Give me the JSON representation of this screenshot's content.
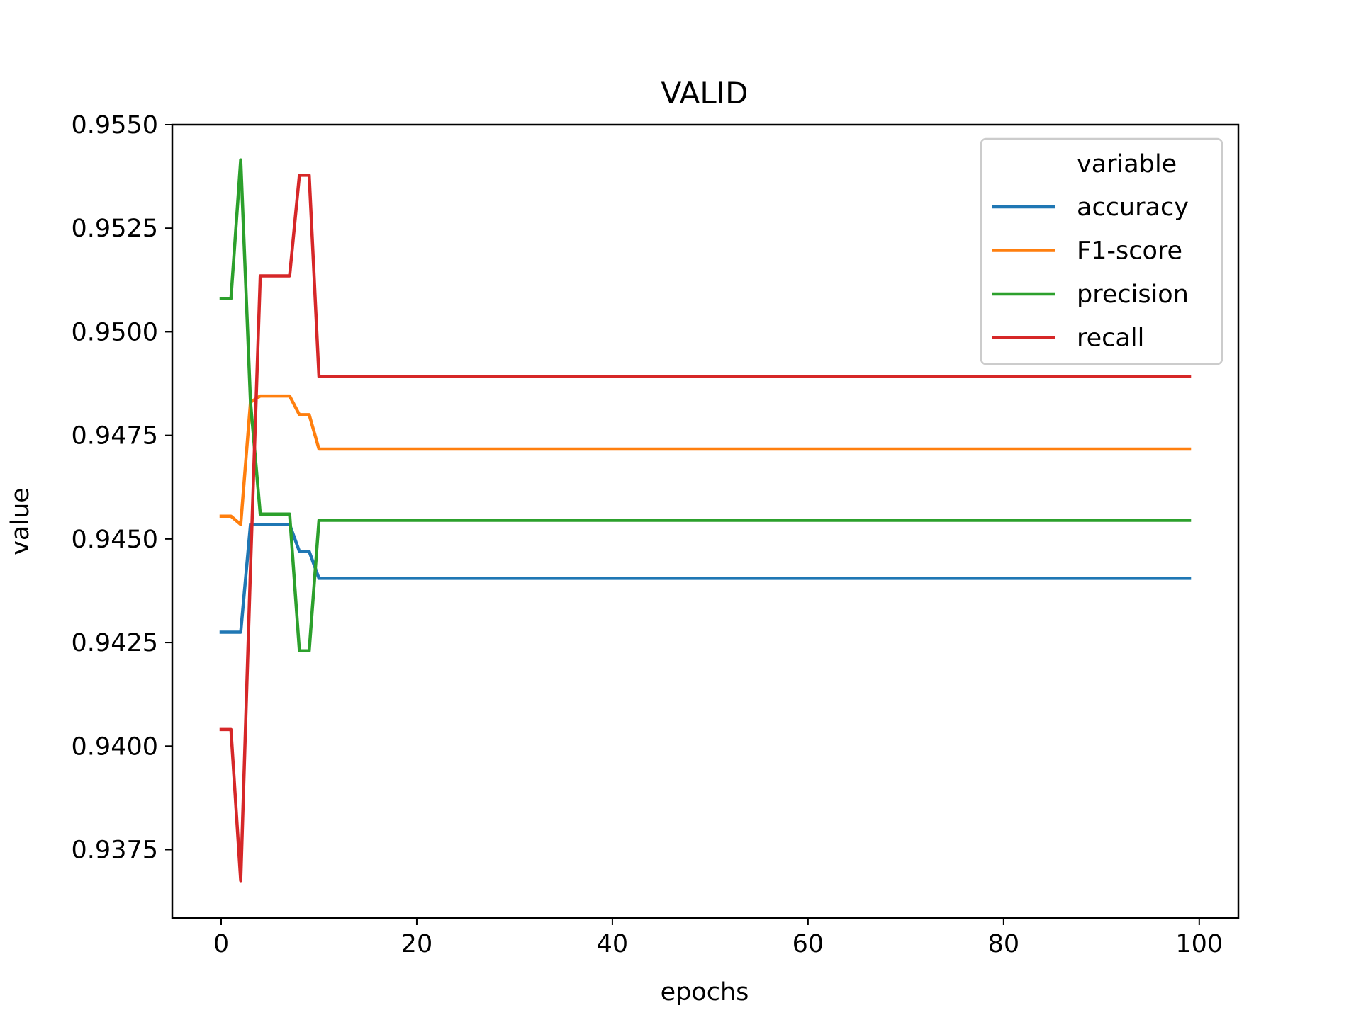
{
  "chart_data": {
    "type": "line",
    "title": "VALID",
    "xlabel": "epochs",
    "ylabel": "value",
    "xlim": [
      -5,
      104
    ],
    "ylim": [
      0.93585,
      0.955
    ],
    "x_ticks": [
      0,
      20,
      40,
      60,
      80,
      100
    ],
    "y_ticks": [
      0.9375,
      0.94,
      0.9425,
      0.945,
      0.9475,
      0.95,
      0.9525,
      0.955
    ],
    "grid": false,
    "legend": {
      "title": "variable",
      "placement": "top-right"
    },
    "series": [
      {
        "name": "accuracy",
        "color": "#1f77b4",
        "points": [
          [
            0,
            0.94275
          ],
          [
            1,
            0.94275
          ],
          [
            2,
            0.94275
          ],
          [
            3,
            0.94535
          ],
          [
            4,
            0.94535
          ],
          [
            5,
            0.94535
          ],
          [
            6,
            0.94535
          ],
          [
            7,
            0.94535
          ],
          [
            8,
            0.9447
          ],
          [
            9,
            0.9447
          ],
          [
            10,
            0.94405
          ],
          [
            99,
            0.94405
          ]
        ]
      },
      {
        "name": "F1-score",
        "color": "#ff7f0e",
        "points": [
          [
            0,
            0.94555
          ],
          [
            1,
            0.94555
          ],
          [
            2,
            0.94535
          ],
          [
            3,
            0.9483
          ],
          [
            4,
            0.94845
          ],
          [
            5,
            0.94845
          ],
          [
            6,
            0.94845
          ],
          [
            7,
            0.94845
          ],
          [
            8,
            0.948
          ],
          [
            9,
            0.948
          ],
          [
            10,
            0.94717
          ],
          [
            99,
            0.94717
          ]
        ]
      },
      {
        "name": "precision",
        "color": "#2ca02c",
        "points": [
          [
            0,
            0.9508
          ],
          [
            1,
            0.9508
          ],
          [
            2,
            0.95415
          ],
          [
            3,
            0.9483
          ],
          [
            4,
            0.9456
          ],
          [
            5,
            0.9456
          ],
          [
            6,
            0.9456
          ],
          [
            7,
            0.9456
          ],
          [
            8,
            0.9423
          ],
          [
            9,
            0.9423
          ],
          [
            10,
            0.94545
          ],
          [
            99,
            0.94545
          ]
        ]
      },
      {
        "name": "recall",
        "color": "#d62728",
        "points": [
          [
            0,
            0.9404
          ],
          [
            1,
            0.9404
          ],
          [
            2,
            0.93675
          ],
          [
            3,
            0.9443
          ],
          [
            4,
            0.95135
          ],
          [
            5,
            0.95135
          ],
          [
            6,
            0.95135
          ],
          [
            7,
            0.95135
          ],
          [
            8,
            0.95378
          ],
          [
            9,
            0.95378
          ],
          [
            10,
            0.94892
          ],
          [
            99,
            0.94892
          ]
        ]
      }
    ]
  }
}
